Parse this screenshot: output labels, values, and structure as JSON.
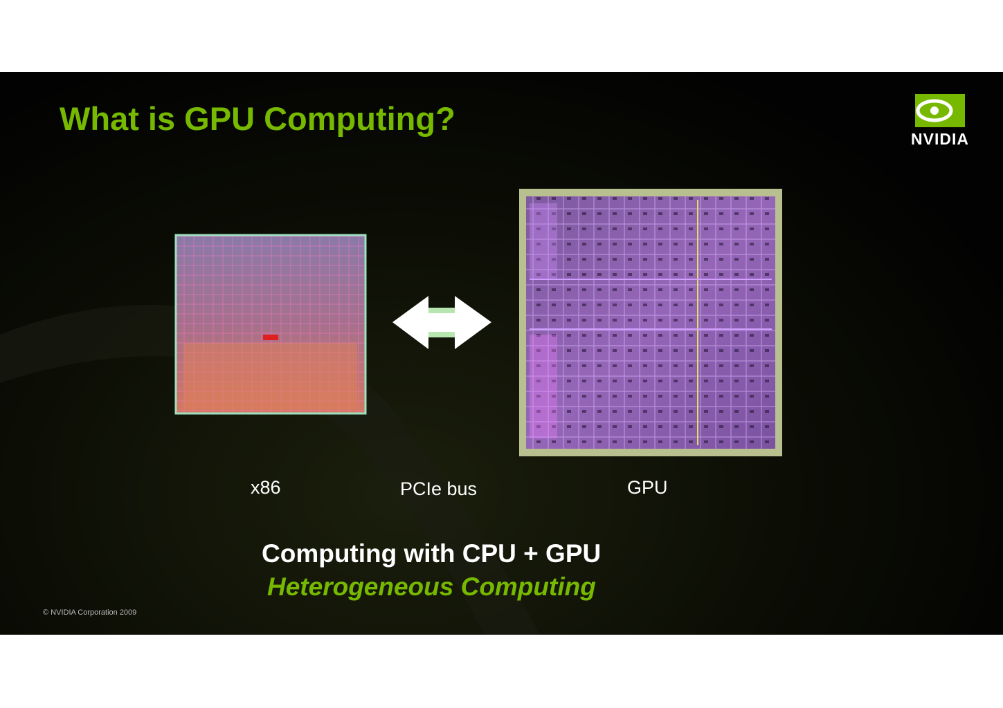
{
  "slide": {
    "title": "What is GPU Computing?",
    "logo": "NVIDIA",
    "labels": {
      "cpu": "x86",
      "bus": "PCIe bus",
      "gpu": "GPU"
    },
    "caption": {
      "line1": "Computing with CPU + GPU",
      "line2": "Heterogeneous Computing"
    },
    "footer": "© NVIDIA Corporation 2009"
  }
}
